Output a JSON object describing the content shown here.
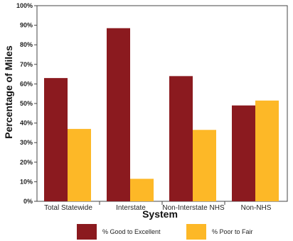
{
  "chart_data": {
    "type": "bar",
    "categories": [
      "Total Statewide",
      "Interstate",
      "Non-Interstate NHS",
      "Non-NHS"
    ],
    "series": [
      {
        "name": "% Good to Excellent",
        "values": [
          63,
          88.5,
          64,
          49
        ],
        "color": "#8b1a1f"
      },
      {
        "name": "% Poor to Fair",
        "values": [
          37,
          11.5,
          36.5,
          51.5
        ],
        "color": "#fdb827"
      }
    ],
    "xlabel": "System",
    "ylabel": "Percentage of Miles",
    "ylim": [
      0,
      100
    ],
    "yticks": [
      "0%",
      "10%",
      "20%",
      "30%",
      "40%",
      "50%",
      "60%",
      "70%",
      "80%",
      "90%",
      "100%"
    ],
    "grid": false,
    "legend_position": "bottom"
  }
}
